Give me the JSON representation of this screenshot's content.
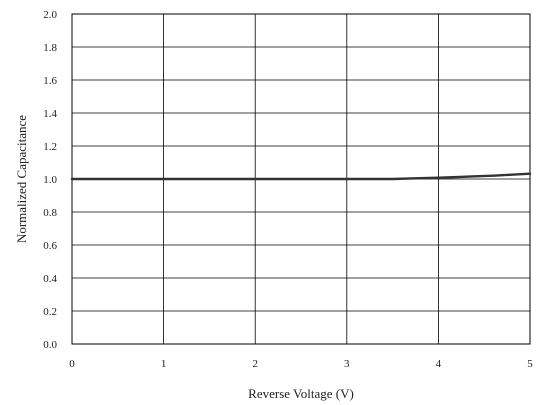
{
  "chart_data": {
    "type": "line",
    "title": "",
    "xlabel": "Reverse Voltage (V)",
    "ylabel": "Normalized Capacitance",
    "xlim": [
      0,
      5
    ],
    "ylim": [
      0,
      2.0
    ],
    "grid": true,
    "x_ticks": [
      "0",
      "1",
      "2",
      "3",
      "4",
      "5"
    ],
    "y_ticks": [
      "0.0",
      "0.2",
      "0.4",
      "0.6",
      "0.8",
      "1.0",
      "1.2",
      "1.4",
      "1.6",
      "1.8",
      "2.0"
    ],
    "series": [
      {
        "color": "#333333",
        "x": [
          0,
          0.5,
          1,
          1.5,
          2,
          2.5,
          3,
          3.5,
          3.8,
          4,
          4.2,
          4.4,
          4.6,
          4.8,
          5
        ],
        "y": [
          1.0,
          1.0,
          1.0,
          1.0,
          1.0,
          1.0,
          1.0,
          1.0,
          1.005,
          1.008,
          1.012,
          1.016,
          1.02,
          1.026,
          1.032
        ]
      }
    ]
  }
}
